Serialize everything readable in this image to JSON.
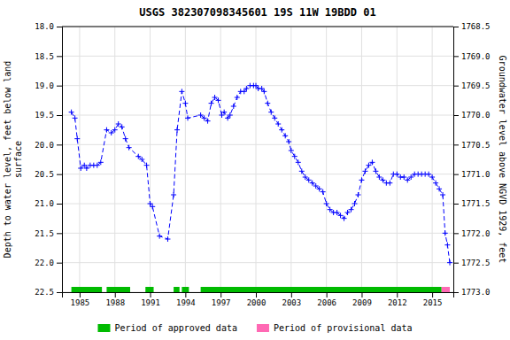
{
  "chart_data": {
    "type": "line",
    "title": "USGS 382307098345601 19S 11W 19BDD 01",
    "ylabel": "Depth to water level, feet below land\nsurface",
    "y2label": "Groundwater level above NGVD 1929, feet",
    "xlim": [
      1983.5,
      2016.8
    ],
    "xticks": [
      1985,
      1988,
      1991,
      1994,
      1997,
      2000,
      2003,
      2006,
      2009,
      2012,
      2015
    ],
    "ylim": [
      22.5,
      18.0
    ],
    "yticks": [
      {
        "value": 18.0,
        "label": "18.0"
      },
      18.5,
      {
        "value": 19.0,
        "label": "19.0"
      },
      19.5,
      {
        "value": 20.0,
        "label": "20.0"
      },
      20.5,
      {
        "value": 21.0,
        "label": "21.0"
      },
      21.5,
      {
        "value": 22.0,
        "label": "22.0"
      },
      22.5
    ],
    "y2lim": [
      1773.0,
      1768.5
    ],
    "y2ticks": [
      1768.5,
      {
        "value": 1769.0,
        "label": "1769.0"
      },
      1769.5,
      {
        "value": 1770.0,
        "label": "1770.0"
      },
      1770.5,
      {
        "value": 1771.0,
        "label": "1771.0"
      },
      1771.5,
      {
        "value": 1772.0,
        "label": "1772.0"
      },
      1772.5,
      {
        "value": 1773.0,
        "label": "1773.0"
      }
    ],
    "grid": true,
    "legend": "bottom",
    "x": [
      1984.3,
      1984.6,
      1984.8,
      1985.1,
      1985.4,
      1985.6,
      1985.9,
      1986.2,
      1986.5,
      1986.8,
      1987.3,
      1987.7,
      1988.0,
      1988.3,
      1988.6,
      1988.9,
      1989.2,
      1990.0,
      1990.3,
      1990.7,
      1991.0,
      1991.2,
      1991.8,
      1992.5,
      1993.0,
      1993.3,
      1993.7,
      1994.0,
      1994.2,
      1995.3,
      1995.6,
      1995.9,
      1996.2,
      1996.5,
      1996.8,
      1997.1,
      1997.3,
      1997.6,
      1997.8,
      1998.1,
      1998.4,
      1998.7,
      1999.0,
      1999.2,
      1999.5,
      1999.8,
      2000.0,
      2000.2,
      2000.5,
      2000.7,
      2001.0,
      2001.3,
      2001.6,
      2001.9,
      2002.2,
      2002.5,
      2002.8,
      2003.0,
      2003.3,
      2003.6,
      2003.9,
      2004.2,
      2004.5,
      2004.8,
      2005.1,
      2005.4,
      2005.7,
      2006.0,
      2006.3,
      2006.6,
      2006.9,
      2007.2,
      2007.5,
      2007.8,
      2008.1,
      2008.4,
      2008.7,
      2009.0,
      2009.3,
      2009.6,
      2009.9,
      2010.2,
      2010.5,
      2010.8,
      2011.1,
      2011.4,
      2011.7,
      2012.0,
      2012.3,
      2012.6,
      2012.9,
      2013.2,
      2013.5,
      2013.8,
      2014.1,
      2014.4,
      2014.7,
      2015.0,
      2015.3,
      2015.6,
      2015.9,
      2016.1,
      2016.3,
      2016.5
    ],
    "series": [
      {
        "color": "#0000ff",
        "marker": "plus",
        "line_style": "dashed",
        "values": [
          19.45,
          19.55,
          19.9,
          20.4,
          20.35,
          20.4,
          20.35,
          20.35,
          20.35,
          20.3,
          19.75,
          19.8,
          19.75,
          19.65,
          19.7,
          19.9,
          20.05,
          20.2,
          20.25,
          20.35,
          21.0,
          21.05,
          21.55,
          21.6,
          20.85,
          19.75,
          19.1,
          19.3,
          19.55,
          19.5,
          19.55,
          19.6,
          19.3,
          19.2,
          19.25,
          19.5,
          19.45,
          19.55,
          19.5,
          19.35,
          19.2,
          19.1,
          19.1,
          19.05,
          19.0,
          19.0,
          19.0,
          19.05,
          19.05,
          19.1,
          19.3,
          19.45,
          19.55,
          19.65,
          19.75,
          19.85,
          19.95,
          20.1,
          20.2,
          20.3,
          20.45,
          20.55,
          20.6,
          20.65,
          20.7,
          20.75,
          20.8,
          21.0,
          21.1,
          21.15,
          21.15,
          21.2,
          21.25,
          21.15,
          21.1,
          21.0,
          20.85,
          20.6,
          20.45,
          20.35,
          20.3,
          20.45,
          20.55,
          20.6,
          20.65,
          20.65,
          20.5,
          20.5,
          20.55,
          20.55,
          20.6,
          20.55,
          20.5,
          20.5,
          20.5,
          20.5,
          20.5,
          20.55,
          20.65,
          20.75,
          20.85,
          21.5,
          21.7,
          22.0
        ]
      },
      {
        "name": "Period of approved data",
        "type": "period",
        "color": "#00bb00",
        "segments": [
          [
            1984.3,
            1986.9
          ],
          [
            1987.3,
            1989.3
          ],
          [
            1990.6,
            1991.3
          ],
          [
            1993.0,
            1993.5
          ],
          [
            1993.7,
            1994.3
          ],
          [
            1995.3,
            2015.8
          ]
        ]
      },
      {
        "name": "Period of provisional data",
        "type": "period",
        "color": "#ff69b4",
        "segments": [
          [
            2015.8,
            2016.5
          ]
        ]
      }
    ]
  }
}
